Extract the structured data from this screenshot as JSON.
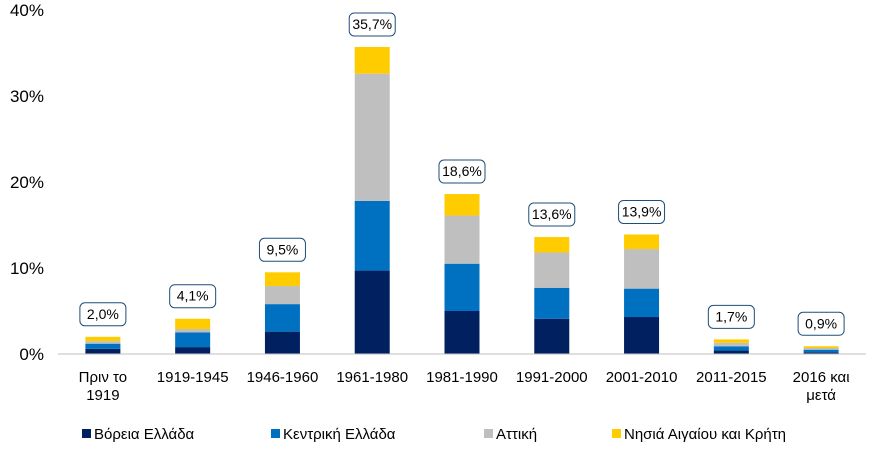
{
  "chart_data": {
    "type": "bar",
    "stacked": true,
    "categories": [
      [
        "Πριν το",
        "1919"
      ],
      [
        "1919-1945"
      ],
      [
        "1946-1960"
      ],
      [
        "1961-1980"
      ],
      [
        "1981-1990"
      ],
      [
        "1991-2000"
      ],
      [
        "2001-2010"
      ],
      [
        "2011-2015"
      ],
      [
        "2016 και",
        "μετά"
      ]
    ],
    "series": [
      {
        "name": "Βόρεια Ελλάδα",
        "color": "#002060",
        "values": [
          0.6,
          0.8,
          2.6,
          9.7,
          5.0,
          4.1,
          4.3,
          0.4,
          0.2
        ]
      },
      {
        "name": "Κεντρική  Ελλάδα",
        "color": "#0070C0",
        "values": [
          0.6,
          1.7,
          3.2,
          8.1,
          5.5,
          3.6,
          3.3,
          0.5,
          0.3
        ]
      },
      {
        "name": "Αττική",
        "color": "#BFBFBF",
        "values": [
          0.3,
          0.4,
          2.1,
          14.8,
          5.6,
          4.1,
          4.6,
          0.4,
          0.2
        ]
      },
      {
        "name": "Νησιά Αιγαίου και Κρήτη",
        "color": "#FFCC00",
        "values": [
          0.5,
          1.2,
          1.6,
          3.1,
          2.5,
          1.8,
          1.7,
          0.4,
          0.2
        ]
      }
    ],
    "totals": [
      "2,0%",
      "4,1%",
      "9,5%",
      "35,7%",
      "18,6%",
      "13,6%",
      "13,9%",
      "1,7%",
      "0,9%"
    ],
    "ylim": [
      0,
      40
    ],
    "yticks": [
      {
        "value": 0,
        "label": "0%"
      },
      {
        "value": 10,
        "label": "10%"
      },
      {
        "value": 20,
        "label": "20%"
      },
      {
        "value": 30,
        "label": "30%"
      },
      {
        "value": 40,
        "label": "40%"
      }
    ],
    "legend_position": "bottom",
    "grid": false,
    "title": "",
    "xlabel": "",
    "ylabel": ""
  }
}
